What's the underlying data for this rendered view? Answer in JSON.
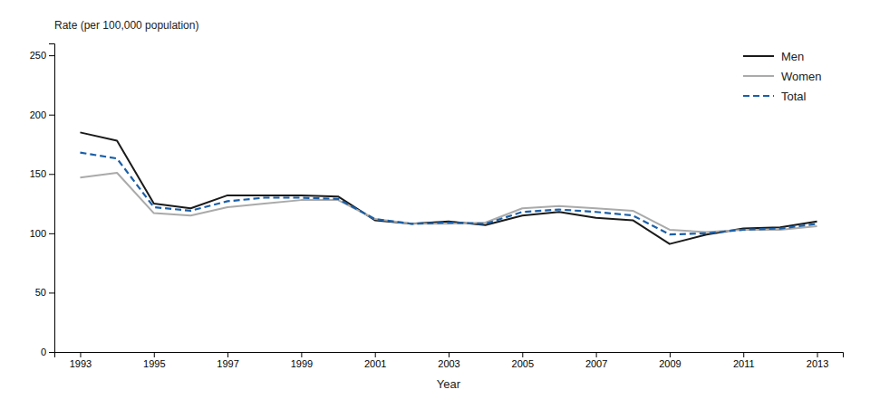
{
  "chart_data": {
    "type": "line",
    "xlabel": "Year",
    "ylabel": "Rate (per 100,000 population)",
    "x": [
      1993,
      1994,
      1995,
      1996,
      1997,
      1998,
      1999,
      2000,
      2001,
      2002,
      2003,
      2004,
      2005,
      2006,
      2007,
      2008,
      2009,
      2010,
      2011,
      2012,
      2013
    ],
    "series": [
      {
        "name": "Men",
        "color": "#1a1a1a",
        "line_style": "solid",
        "values": [
          185,
          178,
          125,
          121,
          132,
          132,
          132,
          131,
          111,
          108,
          110,
          107,
          115,
          118,
          113,
          111,
          91,
          99,
          104,
          105,
          110
        ]
      },
      {
        "name": "Women",
        "color": "#aaaaaa",
        "line_style": "solid",
        "values": [
          147,
          151,
          117,
          115,
          122,
          125,
          128,
          128,
          112,
          108,
          108,
          109,
          121,
          123,
          121,
          119,
          103,
          101,
          103,
          103,
          106
        ]
      },
      {
        "name": "Total",
        "color": "#1a5fa8",
        "line_style": "dashed",
        "values": [
          168,
          163,
          122,
          119,
          127,
          130,
          130,
          129,
          112,
          108,
          109,
          108,
          118,
          120,
          118,
          115,
          99,
          100,
          103,
          104,
          108
        ]
      }
    ],
    "xlim": [
      1992.3,
      2013.7
    ],
    "xticks": [
      1993,
      1995,
      1997,
      1999,
      2001,
      2003,
      2005,
      2007,
      2009,
      2011,
      2013
    ],
    "ylim": [
      0,
      260
    ],
    "yticks": [
      0,
      50,
      100,
      150,
      200,
      250
    ],
    "grid": false,
    "legend": "upper-right"
  }
}
